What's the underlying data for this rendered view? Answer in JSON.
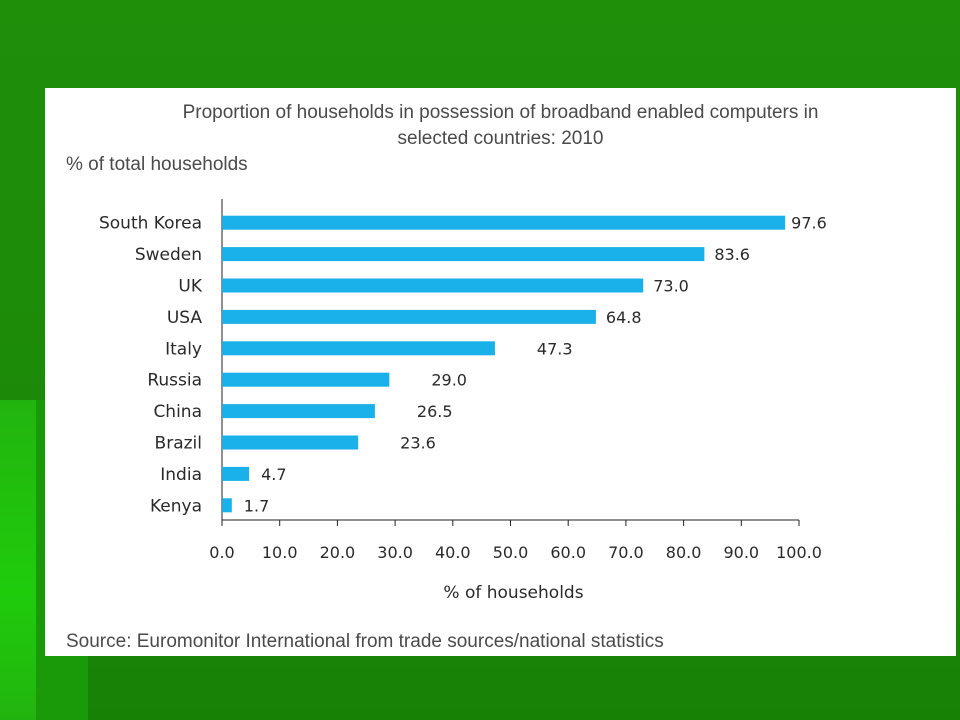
{
  "colors": {
    "background": "#1f8f0a",
    "panel": "#ffffff",
    "bar": "#1ab0ea",
    "text": "#4a4a4a"
  },
  "chart_data": {
    "type": "bar",
    "orientation": "horizontal",
    "title_line1": "Proportion of households in possession of broadband enabled computers in",
    "title_line2": "selected countries: 2010",
    "units": "% of total households",
    "xlabel": "% of households",
    "source": "Source: Euromonitor International from trade sources/national statistics",
    "categories": [
      "South Korea",
      "Sweden",
      "UK",
      "USA",
      "Italy",
      "Russia",
      "China",
      "Brazil",
      "India",
      "Kenya"
    ],
    "values": [
      97.6,
      83.6,
      73.0,
      64.8,
      47.3,
      29.0,
      26.5,
      23.6,
      4.7,
      1.7
    ],
    "value_labels": [
      "97.6",
      "83.6",
      "73.0",
      "64.8",
      "47.3",
      "29.0",
      "26.5",
      "23.6",
      "4.7",
      "1.7"
    ],
    "xlim": [
      0,
      100
    ],
    "ticks": [
      "0.0",
      "10.0",
      "20.0",
      "30.0",
      "40.0",
      "50.0",
      "60.0",
      "70.0",
      "80.0",
      "90.0",
      "100.0"
    ],
    "grid": false,
    "legend": "none"
  }
}
